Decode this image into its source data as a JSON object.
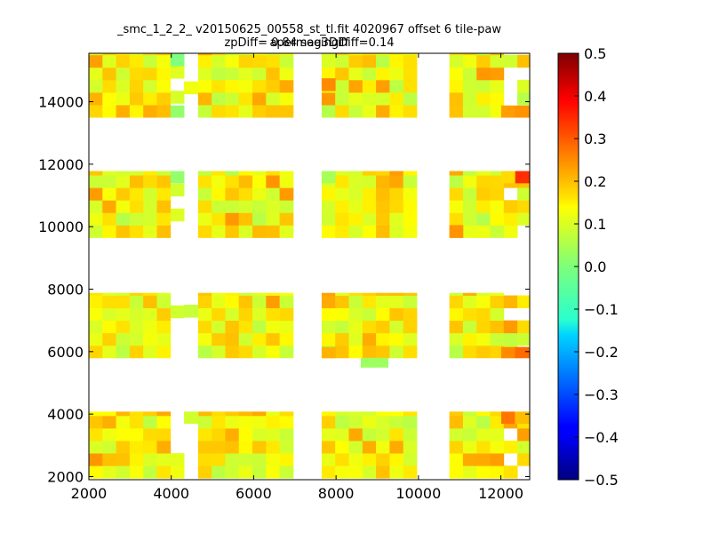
{
  "chart_data": {
    "type": "heatmap",
    "title_line1": "_smc_1_2_2_ v20150625_00558_st_tl.fit 4020967 offset 6 tile-paw apermag3Diff",
    "title_line2": "zpDiff= 0.84 seeingDiff=0.14",
    "xlim": [
      2000,
      12700
    ],
    "ylim": [
      1900,
      15550
    ],
    "x_ticks": [
      "2000",
      "4000",
      "6000",
      "8000",
      "10000",
      "12000"
    ],
    "y_ticks": [
      "2000",
      "4000",
      "6000",
      "8000",
      "10000",
      "12000",
      "14000"
    ],
    "colorbar": {
      "vmin": -0.5,
      "vmax": 0.5,
      "colormap": "jet",
      "ticks": [
        "0.5",
        "0.4",
        "0.3",
        "0.2",
        "0.1",
        "0.0",
        "−0.1",
        "−0.2",
        "−0.3",
        "−0.4",
        "−0.5"
      ]
    },
    "cell_size": [
      330,
      400
    ],
    "detectors": {
      "x_ranges": [
        [
          2000,
          3980
        ],
        [
          4650,
          6960
        ],
        [
          7650,
          9960
        ],
        [
          10750,
          12700
        ]
      ],
      "y_ranges": [
        [
          1950,
          4080
        ],
        [
          5800,
          7880
        ],
        [
          9650,
          11780
        ],
        [
          13500,
          15550
        ]
      ],
      "column_extra": [
        [
          [
            3980,
            4310,
            2
          ]
        ],
        [
          [
            4310,
            4650,
            2
          ]
        ],
        [
          [],
          []
        ],
        [
          []
        ]
      ]
    },
    "gaps": {
      "left_col_right": [
        1,
        2,
        1,
        2
      ],
      "right_col_right": [
        1,
        2,
        1,
        1
      ],
      "extra_cells": [
        [
          8600,
          5500,
          0.03
        ],
        [
          8930,
          5500,
          0.03
        ]
      ]
    }
  }
}
